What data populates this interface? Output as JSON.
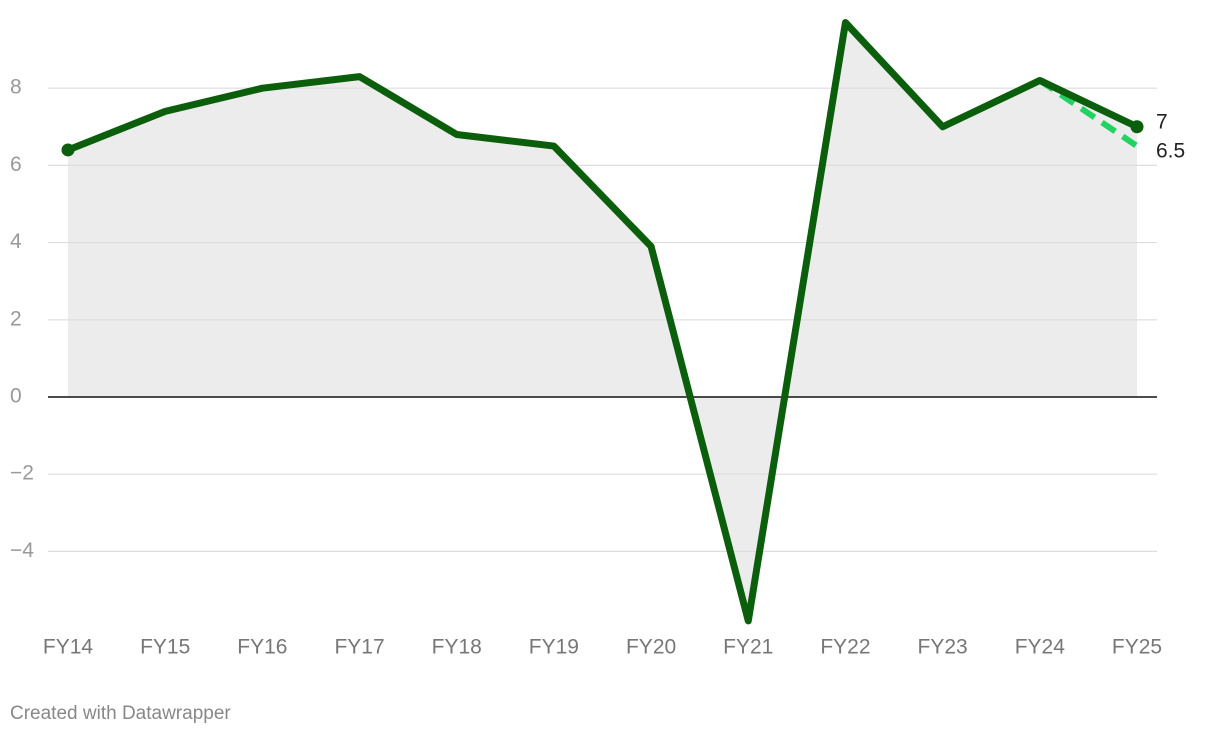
{
  "chart_data": {
    "type": "line",
    "categories": [
      "FY14",
      "FY15",
      "FY16",
      "FY17",
      "FY18",
      "FY19",
      "FY20",
      "FY21",
      "FY22",
      "FY23",
      "FY24",
      "FY25"
    ],
    "series": [
      {
        "color": "#0b5e0b",
        "values": [
          6.4,
          7.4,
          8.0,
          8.3,
          6.8,
          6.5,
          3.9,
          -5.8,
          9.7,
          7.0,
          8.2,
          7
        ]
      },
      {
        "color": "#22d364",
        "values": [
          null,
          null,
          null,
          null,
          null,
          null,
          null,
          null,
          null,
          null,
          8.2,
          6.5
        ]
      }
    ],
    "ylim": [
      -6,
      9.8
    ],
    "yticks": [
      {
        "value": -4,
        "label": "−4"
      },
      {
        "value": -2,
        "label": "−2"
      },
      0,
      2,
      4,
      6,
      8
    ],
    "grid": true,
    "footer": "Created with Datawrapper"
  }
}
